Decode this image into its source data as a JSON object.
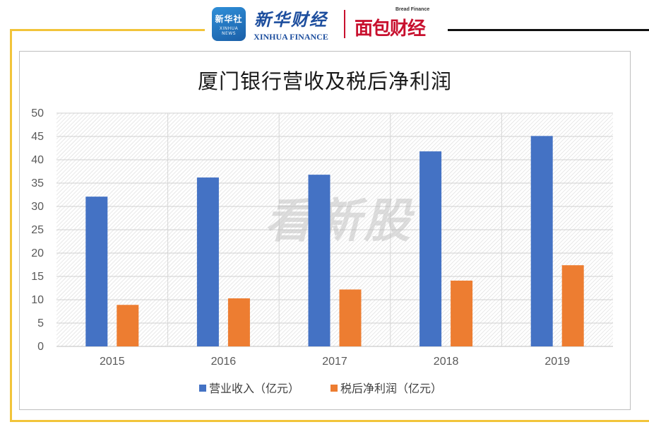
{
  "brand": {
    "badge_main": "新华社",
    "badge_sub": "XINHUA NEWS",
    "xinhua_cn": "新华财经",
    "xinhua_en": "XINHUA FINANCE",
    "bread_en": "Bread Finance",
    "bread_cn": "面包财经"
  },
  "watermark": "看新股",
  "colors": {
    "revenue": "#4472c4",
    "profit": "#ed7d31",
    "frame_accent": "#f2c43a",
    "brand_red": "#c8102e",
    "brand_blue": "#1d4e9e"
  },
  "chart_data": {
    "type": "bar",
    "title": "厦门银行营收及税后净利润",
    "categories": [
      "2015",
      "2016",
      "2017",
      "2018",
      "2019"
    ],
    "series": [
      {
        "name": "营业收入（亿元）",
        "values": [
          32.1,
          36.2,
          36.8,
          41.8,
          45.1
        ]
      },
      {
        "name": "税后净利润（亿元）",
        "values": [
          8.9,
          10.3,
          12.2,
          14.1,
          17.4
        ]
      }
    ],
    "xlabel": "",
    "ylabel": "",
    "ylim": [
      0,
      50
    ],
    "yticks": [
      0,
      5,
      10,
      15,
      20,
      25,
      30,
      35,
      40,
      45,
      50
    ],
    "grid": true,
    "legend_position": "bottom"
  }
}
